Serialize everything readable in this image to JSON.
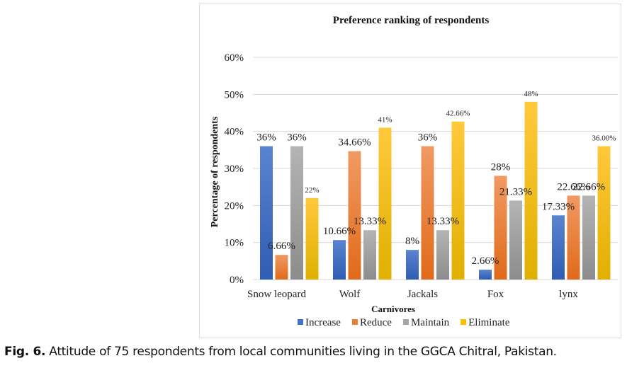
{
  "caption": {
    "label": "Fig. 6.",
    "text": " Attitude of 75 respondents from local communities living in the GGCA Chitral, Pakistan."
  },
  "chart_data": {
    "type": "bar",
    "title": "Preference ranking of respondents",
    "xlabel": "Carnivores",
    "ylabel": "Percentage of respondents",
    "ylim": [
      0,
      60
    ],
    "yticks": [
      0,
      10,
      20,
      30,
      40,
      50,
      60
    ],
    "ytick_labels": [
      "0%",
      "10%",
      "20%",
      "30%",
      "40%",
      "50%",
      "60%"
    ],
    "grid": true,
    "legend_position": "bottom",
    "categories": [
      "Snow leopard",
      "Wolf",
      "Jackals",
      "Fox",
      "lynx"
    ],
    "series": [
      {
        "name": "Increase",
        "color": "#4472c4",
        "values": [
          36,
          10.66,
          8,
          2.66,
          17.33
        ],
        "labels": [
          "36%",
          "10.66%",
          "8%",
          "2.66%",
          "17.33%"
        ]
      },
      {
        "name": "Reduce",
        "color": "#ed7d31",
        "values": [
          6.66,
          34.66,
          36,
          28,
          22.66
        ],
        "labels": [
          "6.66%",
          "34.66%",
          "36%",
          "28%",
          "22.66%"
        ]
      },
      {
        "name": "Maintain",
        "color": "#a5a5a5",
        "values": [
          36,
          13.33,
          13.33,
          21.33,
          22.66
        ],
        "labels": [
          "36%",
          "13.33%",
          "13.33%",
          "21.33%",
          "22.66%"
        ]
      },
      {
        "name": "Eliminate",
        "color": "#ffc000",
        "values": [
          22,
          41,
          42.66,
          48,
          36
        ],
        "labels": [
          "22%",
          "41%",
          "42.66%",
          "48%",
          "36.00%"
        ]
      }
    ]
  }
}
